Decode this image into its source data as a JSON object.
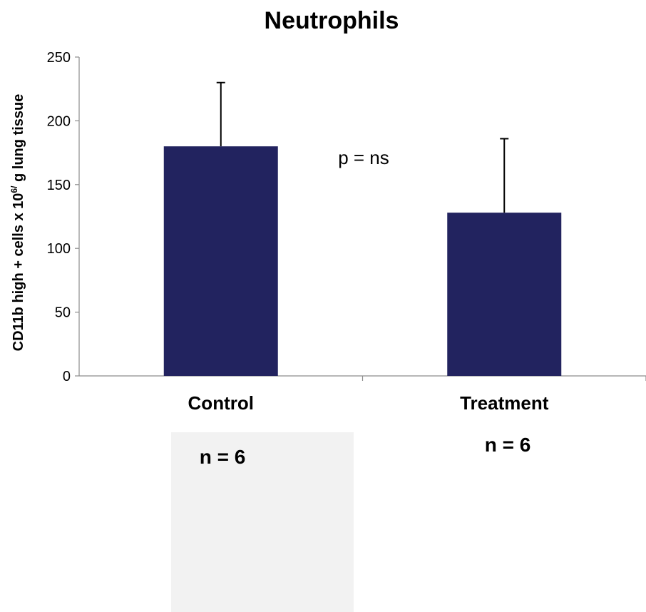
{
  "chart_data": {
    "type": "bar",
    "title": "Neutrophils",
    "ylabel": {
      "main": "CD11b high + cells x 10",
      "superscript": "6/",
      "tail": " g lung tissue"
    },
    "categories": [
      "Control",
      "Treatment"
    ],
    "series": [
      {
        "values": [
          180,
          128
        ],
        "error_upper": [
          50,
          58
        ],
        "color": "#22235F"
      }
    ],
    "ylim": [
      0,
      250
    ],
    "yticks": [
      0,
      50,
      100,
      150,
      200,
      250
    ],
    "grid": false,
    "annotations": [
      {
        "text": "p = ns"
      }
    ],
    "sample_sizes": [
      "n = 6",
      "n = 6"
    ]
  },
  "colors": {
    "bar": "#22235F",
    "axis": "#8C8C8C",
    "note_box": "#F2F2F2"
  }
}
